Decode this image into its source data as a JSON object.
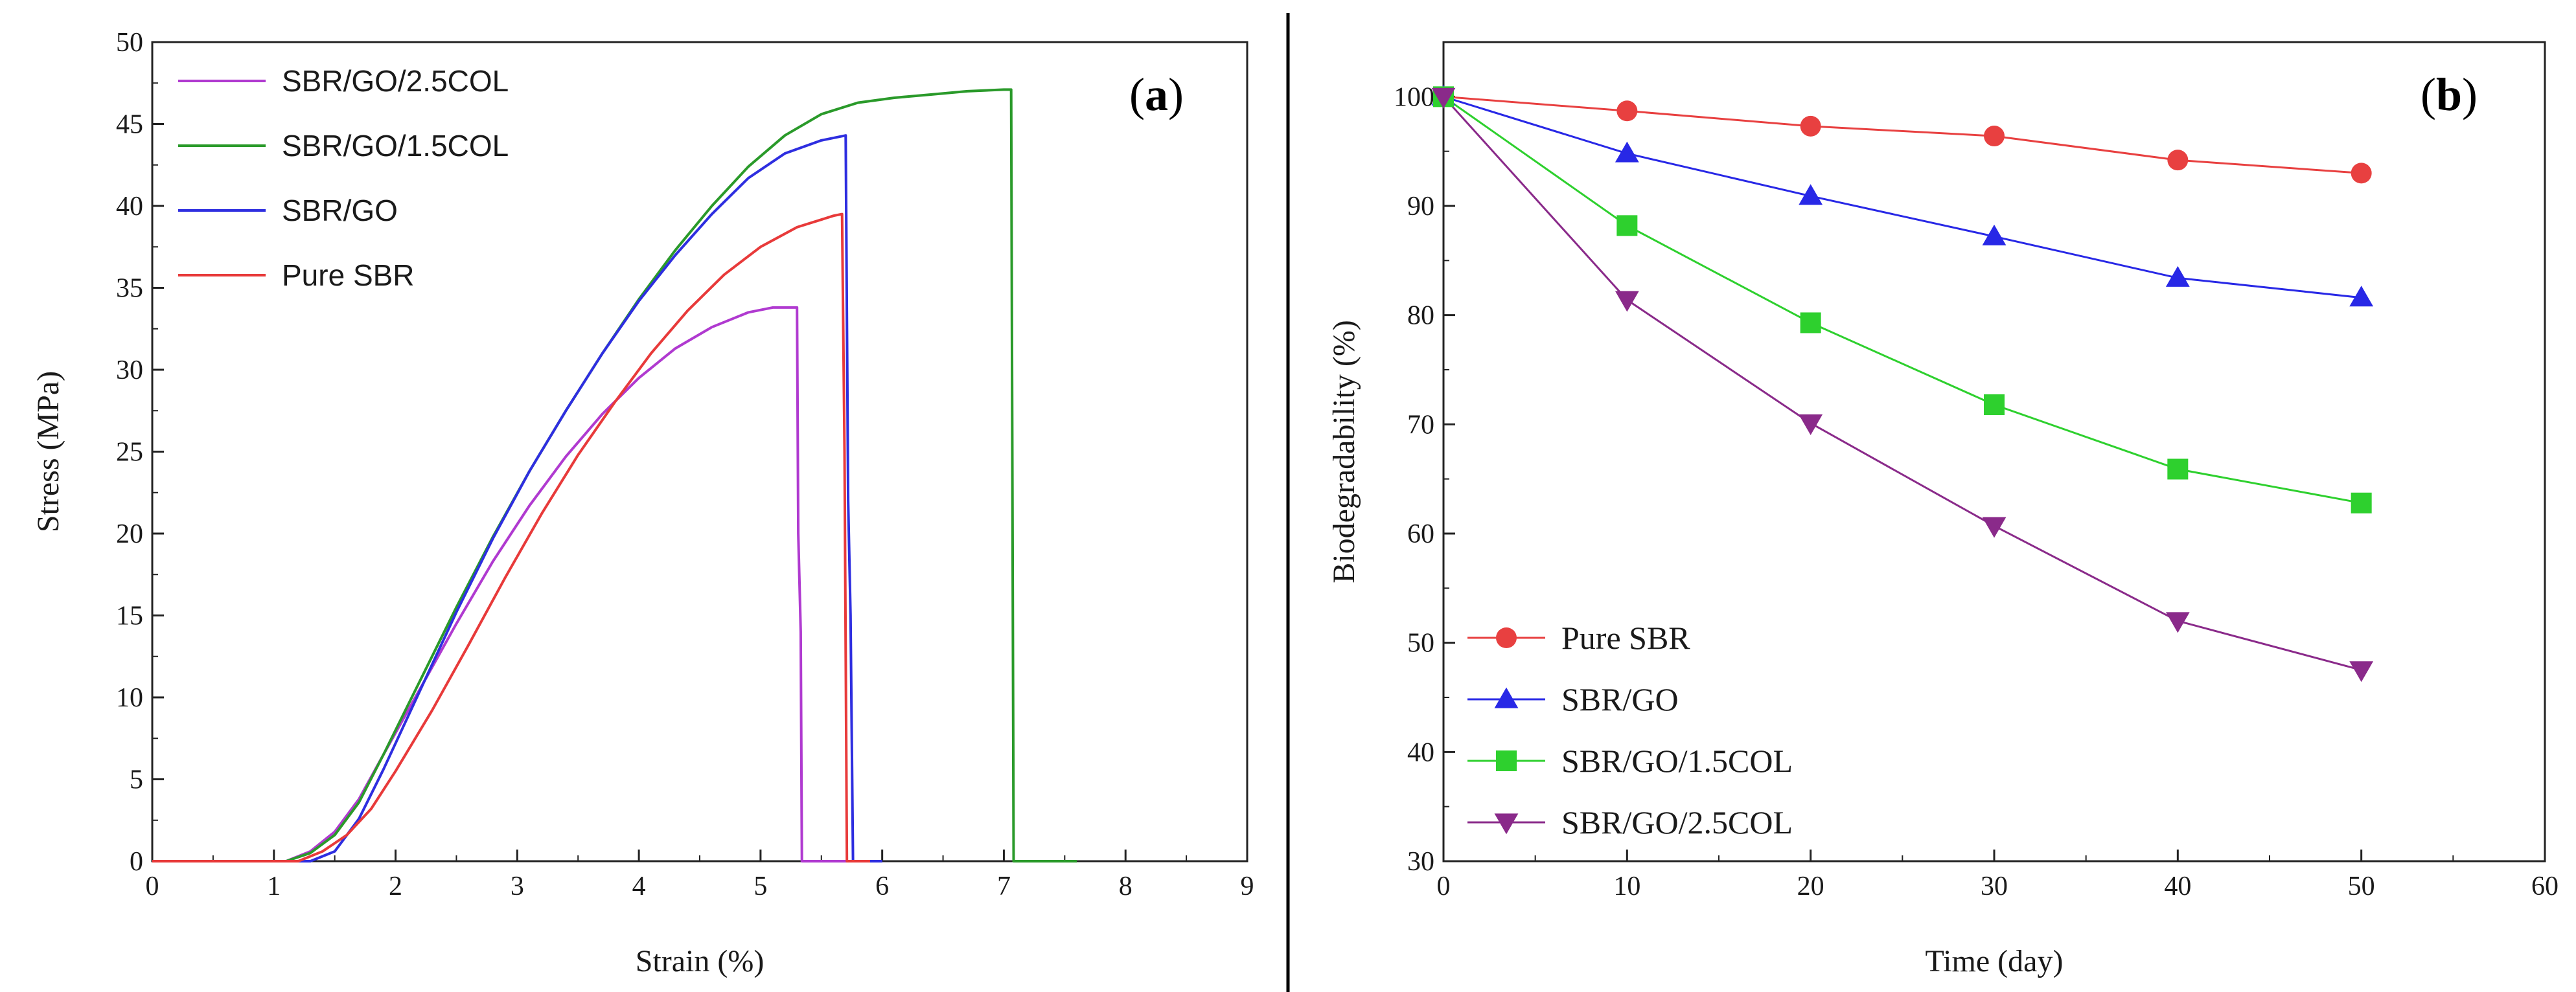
{
  "chart_data": [
    {
      "panel": "(a)",
      "panel_letter": "a",
      "type": "line",
      "title": "",
      "xlabel": "Strain (%)",
      "ylabel": "Stress (MPa)",
      "xlim": [
        0,
        9
      ],
      "ylim": [
        0,
        50
      ],
      "xticks": [
        0,
        1,
        2,
        3,
        4,
        5,
        6,
        7,
        8,
        9
      ],
      "yticks": [
        0,
        5,
        10,
        15,
        20,
        25,
        30,
        35,
        40,
        45,
        50
      ],
      "legend_position": "top-left",
      "series": [
        {
          "name": "SBR/GO/2.5COL",
          "color": "#b03ad0",
          "x": [
            0,
            1.1,
            1.3,
            1.5,
            1.7,
            1.9,
            2.2,
            2.5,
            2.8,
            3.1,
            3.4,
            3.7,
            4.0,
            4.3,
            4.6,
            4.9,
            5.1,
            5.3,
            5.31,
            5.33,
            5.34,
            5.36,
            5.6,
            6.0
          ],
          "y": [
            0,
            0,
            0.6,
            1.8,
            3.8,
            6.5,
            10.5,
            14.5,
            18.3,
            21.7,
            24.7,
            27.3,
            29.5,
            31.3,
            32.6,
            33.5,
            33.8,
            33.8,
            20.0,
            14.0,
            0,
            0,
            0,
            0
          ]
        },
        {
          "name": "SBR/GO/1.5COL",
          "color": "#2a9a2a",
          "x": [
            0,
            1.1,
            1.3,
            1.5,
            1.7,
            1.9,
            2.2,
            2.5,
            2.8,
            3.1,
            3.4,
            3.7,
            4.0,
            4.3,
            4.6,
            4.9,
            5.2,
            5.5,
            5.8,
            6.1,
            6.4,
            6.7,
            7.0,
            7.06,
            7.08,
            7.2,
            7.6
          ],
          "y": [
            0,
            0,
            0.5,
            1.6,
            3.6,
            6.5,
            11.0,
            15.5,
            19.8,
            23.8,
            27.5,
            31.0,
            34.3,
            37.3,
            40.0,
            42.4,
            44.3,
            45.6,
            46.3,
            46.6,
            46.8,
            47.0,
            47.1,
            47.1,
            0,
            0,
            0
          ]
        },
        {
          "name": "SBR/GO",
          "color": "#2e2ee0",
          "x": [
            0,
            1.3,
            1.5,
            1.7,
            1.9,
            2.2,
            2.5,
            2.8,
            3.1,
            3.4,
            3.7,
            4.0,
            4.3,
            4.6,
            4.9,
            5.2,
            5.5,
            5.7,
            5.72,
            5.74,
            5.76,
            6.0
          ],
          "y": [
            0,
            0,
            0.6,
            2.6,
            5.6,
            10.4,
            15.2,
            19.7,
            23.8,
            27.5,
            31.0,
            34.2,
            37.0,
            39.5,
            41.7,
            43.2,
            44.0,
            44.3,
            22.0,
            15.0,
            0,
            0
          ]
        },
        {
          "name": "Pure SBR",
          "color": "#e83a3a",
          "x": [
            0,
            1.2,
            1.4,
            1.6,
            1.8,
            2.0,
            2.3,
            2.6,
            2.9,
            3.2,
            3.5,
            3.8,
            4.1,
            4.4,
            4.7,
            5.0,
            5.3,
            5.6,
            5.67,
            5.69,
            5.71,
            5.9
          ],
          "y": [
            0,
            0,
            0.6,
            1.6,
            3.2,
            5.5,
            9.2,
            13.2,
            17.3,
            21.2,
            24.8,
            28.0,
            31.0,
            33.6,
            35.8,
            37.5,
            38.7,
            39.4,
            39.5,
            25.0,
            0,
            0
          ]
        }
      ]
    },
    {
      "panel": "(b)",
      "panel_letter": "b",
      "type": "line",
      "title": "",
      "xlabel": "Time (day)",
      "ylabel": "Biodegradability (%)",
      "xlim": [
        0,
        60
      ],
      "ylim": [
        30,
        105
      ],
      "xticks": [
        0,
        10,
        20,
        30,
        40,
        50,
        60
      ],
      "yticks": [
        30,
        40,
        50,
        60,
        70,
        80,
        90,
        100
      ],
      "legend_position": "bottom-left",
      "x": [
        0,
        10,
        20,
        30,
        40,
        50
      ],
      "series": [
        {
          "name": "Pure SBR",
          "color": "#e84040",
          "marker": "circle",
          "values": [
            100,
            98.7,
            97.3,
            96.4,
            94.2,
            93.0
          ]
        },
        {
          "name": "SBR/GO",
          "color": "#2828e6",
          "marker": "triangle-up",
          "values": [
            100,
            94.8,
            90.9,
            87.2,
            83.4,
            81.6
          ]
        },
        {
          "name": "SBR/GO/1.5COL",
          "color": "#2ed02e",
          "marker": "square",
          "values": [
            100,
            88.2,
            79.3,
            71.8,
            65.9,
            62.8
          ]
        },
        {
          "name": "SBR/GO/2.5COL",
          "color": "#8a2a8a",
          "marker": "triangle-down",
          "values": [
            100,
            81.4,
            70.1,
            60.7,
            52.0,
            47.5
          ]
        }
      ]
    }
  ]
}
